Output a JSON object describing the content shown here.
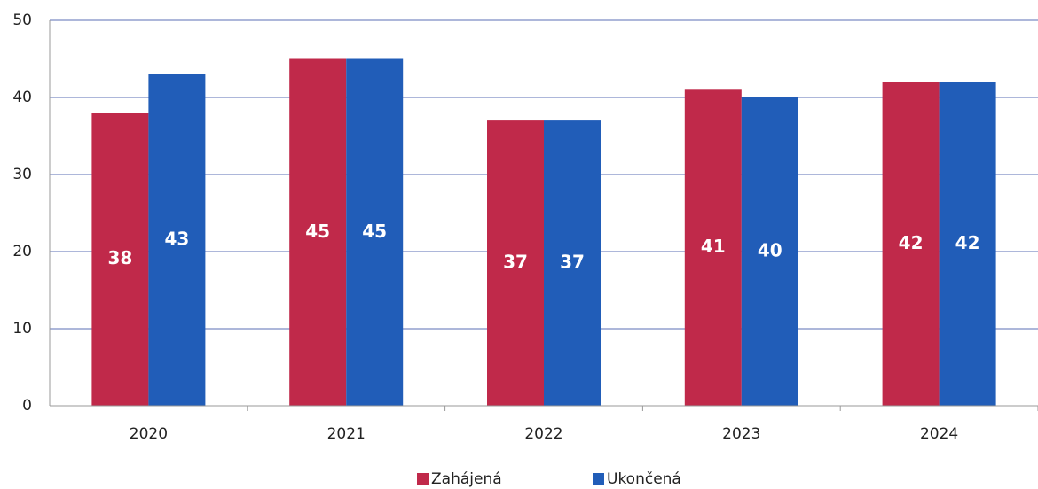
{
  "chart_data": {
    "type": "bar",
    "categories": [
      "2020",
      "2021",
      "2022",
      "2023",
      "2024"
    ],
    "series": [
      {
        "name": "Zahájená",
        "color": "#c0294a",
        "values": [
          38,
          45,
          37,
          41,
          42
        ]
      },
      {
        "name": "Ukončená",
        "color": "#215db8",
        "values": [
          43,
          45,
          37,
          40,
          42
        ]
      }
    ],
    "ylim": [
      0,
      50
    ],
    "yticks": [
      0,
      10,
      20,
      30,
      40,
      50
    ],
    "grid": true,
    "legend": "bottom"
  }
}
